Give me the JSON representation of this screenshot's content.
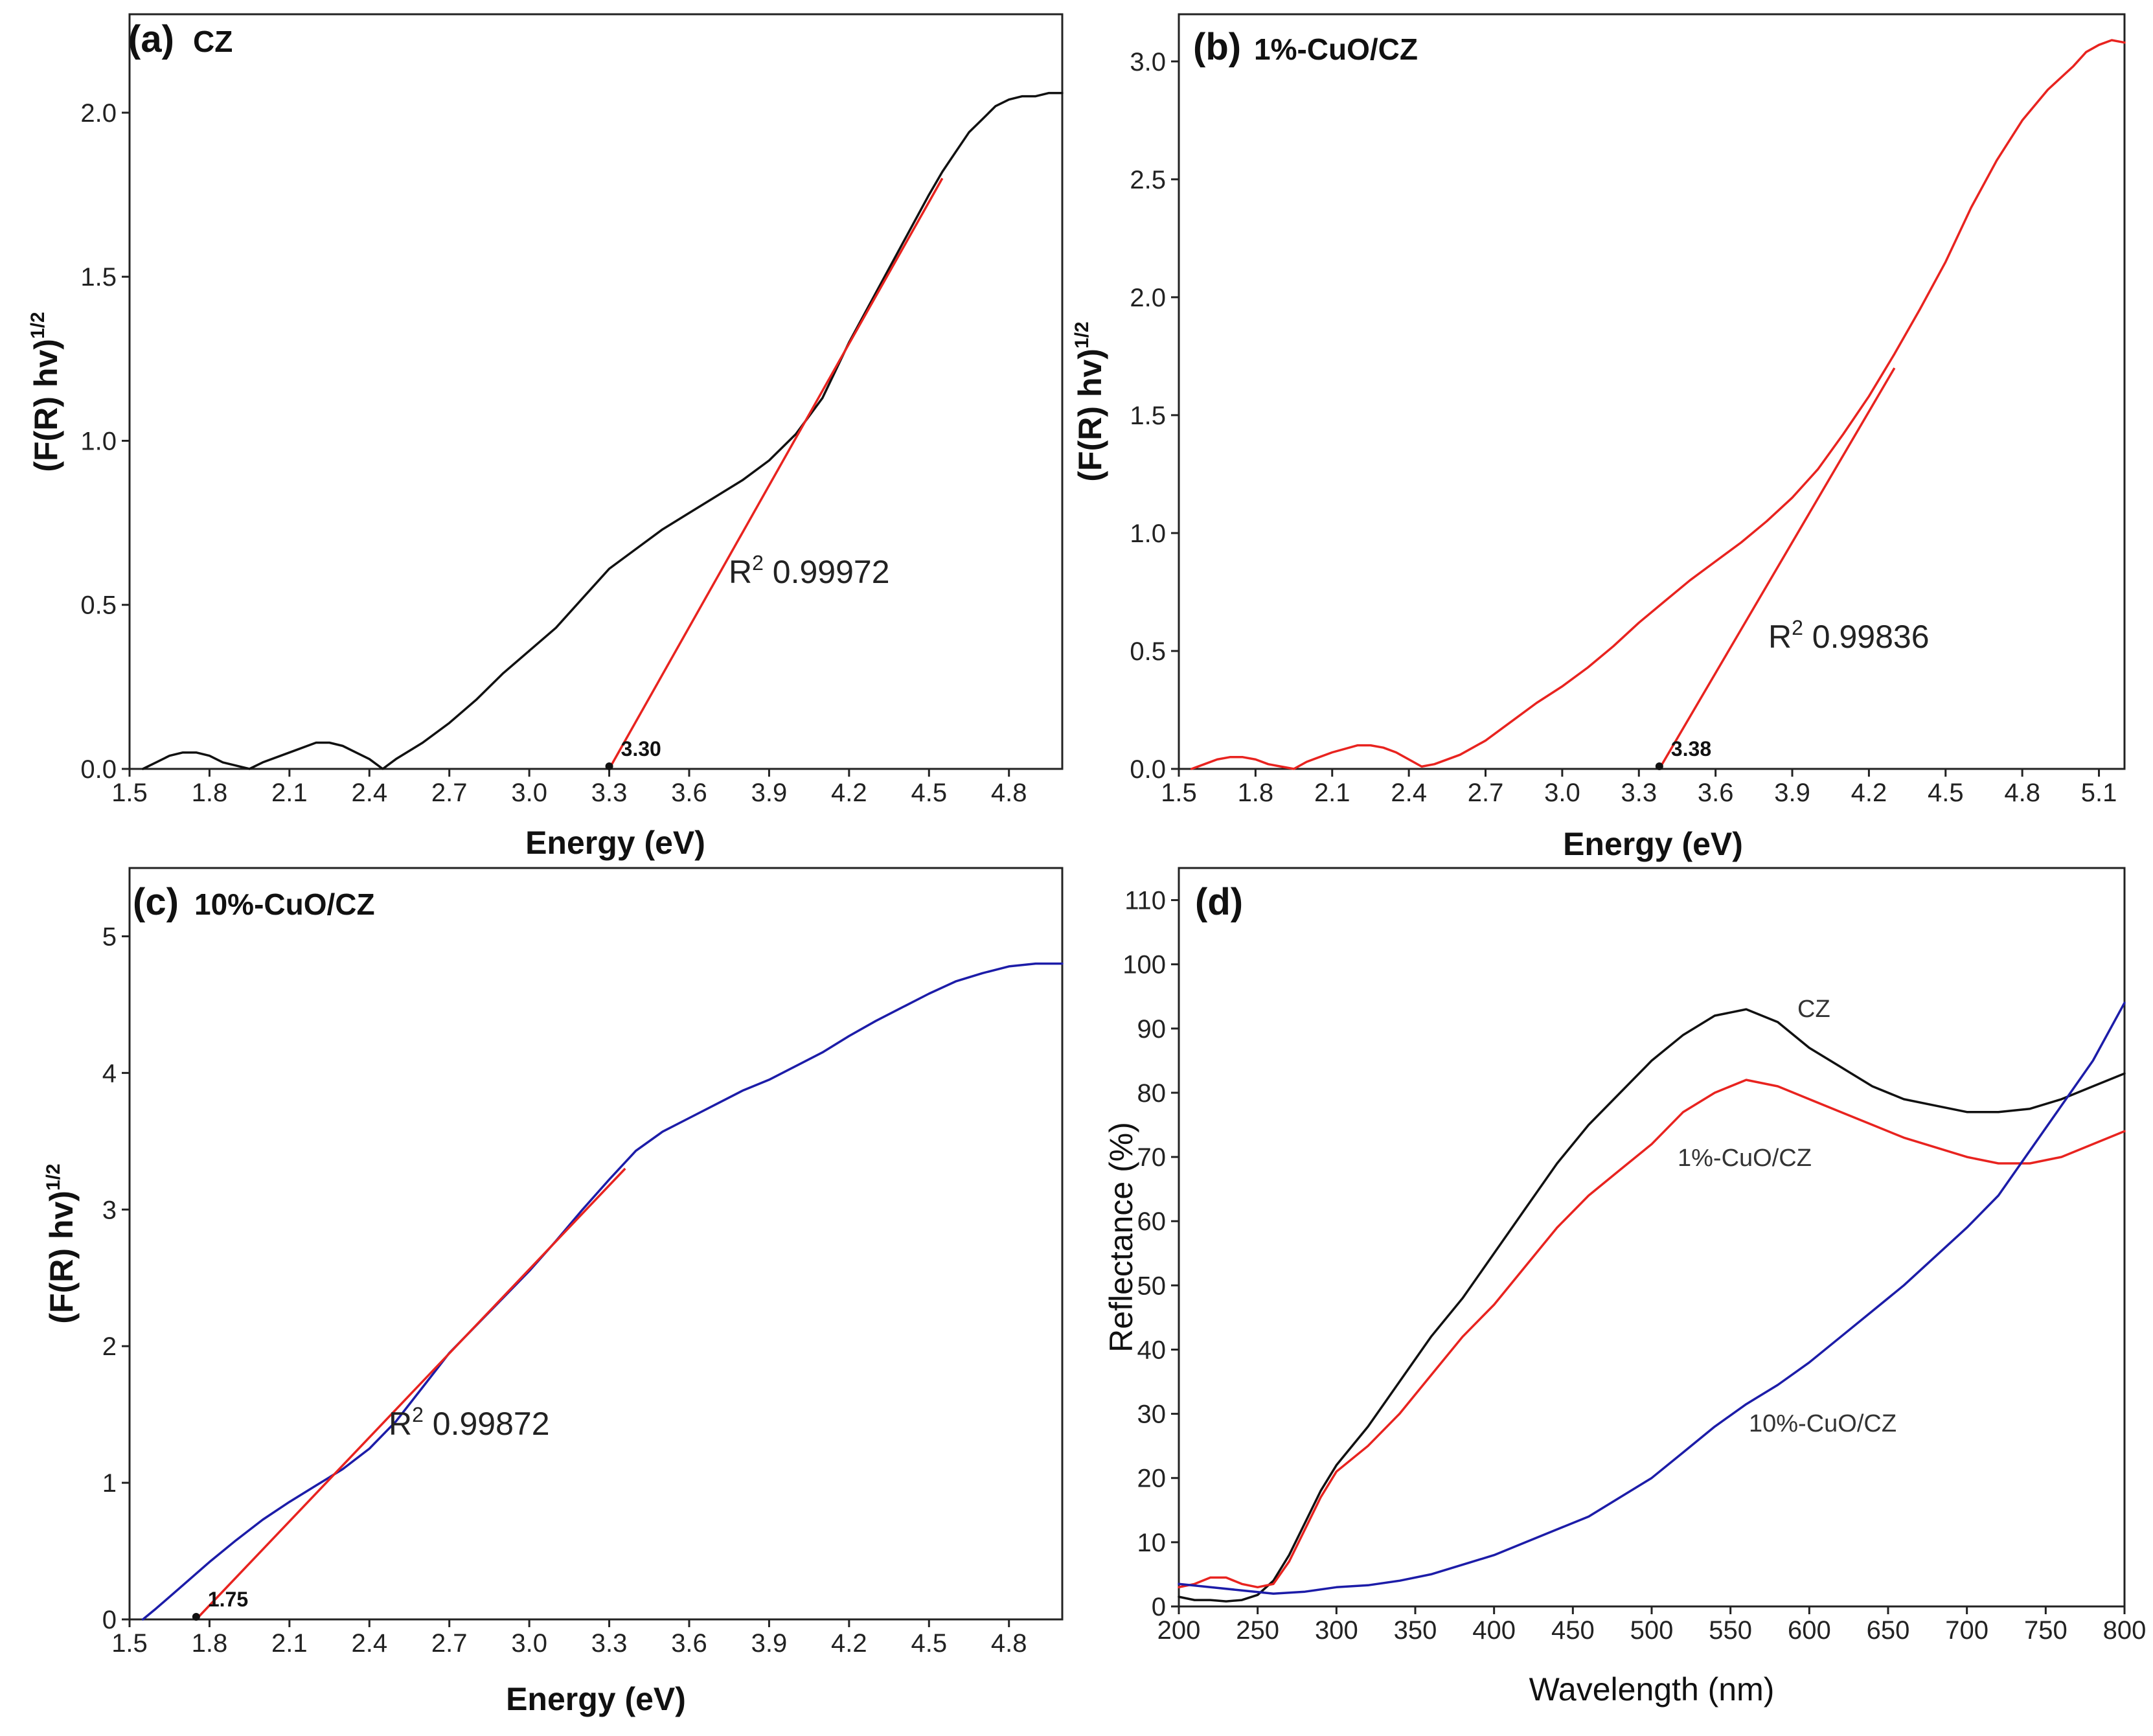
{
  "colors": {
    "black": "#111111",
    "red": "#e8231f",
    "blue": "#1c1ca8"
  },
  "chart_data": [
    {
      "type": "line",
      "panel": "(a)",
      "sample": "CZ",
      "xlabel": "Energy (eV)",
      "ylabel_main": "(F(R) hv)",
      "ylabel_sup": "1/2",
      "xlim": [
        1.5,
        5.0
      ],
      "ylim": [
        0,
        2.3
      ],
      "xticks": [
        "1.5",
        "1.8",
        "2.1",
        "2.4",
        "2.7",
        "3.0",
        "3.3",
        "3.6",
        "3.9",
        "4.2",
        "4.5",
        "4.8"
      ],
      "yticks": [
        "0.0",
        "0.5",
        "1.0",
        "1.5",
        "2.0"
      ],
      "series": [
        {
          "name": "CZ",
          "color": "#111111",
          "x": [
            1.55,
            1.6,
            1.65,
            1.7,
            1.75,
            1.8,
            1.85,
            1.9,
            1.95,
            2.0,
            2.1,
            2.2,
            2.25,
            2.3,
            2.35,
            2.4,
            2.45,
            2.5,
            2.6,
            2.7,
            2.8,
            2.9,
            3.0,
            3.1,
            3.2,
            3.3,
            3.4,
            3.5,
            3.6,
            3.7,
            3.8,
            3.9,
            4.0,
            4.1,
            4.2,
            4.3,
            4.4,
            4.5,
            4.55,
            4.6,
            4.65,
            4.7,
            4.75,
            4.8,
            4.85,
            4.9,
            4.95,
            5.0
          ],
          "y": [
            0.0,
            0.02,
            0.04,
            0.05,
            0.05,
            0.04,
            0.02,
            0.01,
            0.0,
            0.02,
            0.05,
            0.08,
            0.08,
            0.07,
            0.05,
            0.03,
            0.0,
            0.03,
            0.08,
            0.14,
            0.21,
            0.29,
            0.36,
            0.43,
            0.52,
            0.61,
            0.67,
            0.73,
            0.78,
            0.83,
            0.88,
            0.94,
            1.02,
            1.13,
            1.3,
            1.45,
            1.6,
            1.75,
            1.82,
            1.88,
            1.94,
            1.98,
            2.02,
            2.04,
            2.05,
            2.05,
            2.06,
            2.06
          ]
        }
      ],
      "fit": {
        "x": [
          3.3,
          4.55
        ],
        "y": [
          0.0,
          1.8
        ],
        "r2_prefix": "R",
        "r2_sup": "2",
        "r2_value": "0.99972"
      },
      "band_gap_label": "3.30",
      "band_gap_x": 3.3
    },
    {
      "type": "line",
      "panel": "(b)",
      "sample": "1%-CuO/CZ",
      "xlabel": "Energy (eV)",
      "ylabel_main": "(F(R) hv)",
      "ylabel_sup": "1/2",
      "xlim": [
        1.5,
        5.2
      ],
      "ylim": [
        0,
        3.2
      ],
      "xticks": [
        "1.5",
        "1.8",
        "2.1",
        "2.4",
        "2.7",
        "3.0",
        "3.3",
        "3.6",
        "3.9",
        "4.2",
        "4.5",
        "4.8",
        "5.1"
      ],
      "yticks": [
        "0.0",
        "0.5",
        "1.0",
        "1.5",
        "2.0",
        "2.5",
        "3.0"
      ],
      "series": [
        {
          "name": "1%-CuO/CZ",
          "color": "#e8231f",
          "x": [
            1.55,
            1.6,
            1.65,
            1.7,
            1.75,
            1.8,
            1.85,
            1.9,
            1.95,
            2.0,
            2.1,
            2.2,
            2.25,
            2.3,
            2.35,
            2.4,
            2.45,
            2.5,
            2.6,
            2.7,
            2.8,
            2.9,
            3.0,
            3.1,
            3.2,
            3.3,
            3.4,
            3.5,
            3.6,
            3.7,
            3.8,
            3.9,
            4.0,
            4.1,
            4.2,
            4.3,
            4.4,
            4.5,
            4.6,
            4.7,
            4.8,
            4.9,
            5.0,
            5.05,
            5.1,
            5.15,
            5.2
          ],
          "y": [
            0.0,
            0.02,
            0.04,
            0.05,
            0.05,
            0.04,
            0.02,
            0.01,
            0.0,
            0.03,
            0.07,
            0.1,
            0.1,
            0.09,
            0.07,
            0.04,
            0.01,
            0.02,
            0.06,
            0.12,
            0.2,
            0.28,
            0.35,
            0.43,
            0.52,
            0.62,
            0.71,
            0.8,
            0.88,
            0.96,
            1.05,
            1.15,
            1.27,
            1.42,
            1.58,
            1.76,
            1.95,
            2.15,
            2.38,
            2.58,
            2.75,
            2.88,
            2.98,
            3.04,
            3.07,
            3.09,
            3.08
          ]
        }
      ],
      "fit": {
        "x": [
          3.38,
          4.3
        ],
        "y": [
          0.0,
          1.7
        ],
        "r2_prefix": "R",
        "r2_sup": "2",
        "r2_value": "0.99836"
      },
      "band_gap_label": "3.38",
      "band_gap_x": 3.38
    },
    {
      "type": "line",
      "panel": "(c)",
      "sample": "10%-CuO/CZ",
      "xlabel": "Energy (eV)",
      "ylabel_main": "(F(R) hv)",
      "ylabel_sup": "1/2",
      "xlim": [
        1.5,
        5.0
      ],
      "ylim": [
        0,
        5.5
      ],
      "xticks": [
        "1.5",
        "1.8",
        "2.1",
        "2.4",
        "2.7",
        "3.0",
        "3.3",
        "3.6",
        "3.9",
        "4.2",
        "4.5",
        "4.8"
      ],
      "yticks": [
        "0",
        "1",
        "2",
        "3",
        "4",
        "5"
      ],
      "series": [
        {
          "name": "10%-CuO/CZ",
          "color": "#1c1ca8",
          "x": [
            1.55,
            1.6,
            1.7,
            1.8,
            1.9,
            2.0,
            2.1,
            2.2,
            2.3,
            2.4,
            2.5,
            2.6,
            2.7,
            2.8,
            2.9,
            3.0,
            3.1,
            3.2,
            3.3,
            3.4,
            3.5,
            3.6,
            3.7,
            3.8,
            3.9,
            4.0,
            4.1,
            4.2,
            4.3,
            4.4,
            4.5,
            4.6,
            4.7,
            4.8,
            4.9,
            5.0
          ],
          "y": [
            0.0,
            0.08,
            0.25,
            0.42,
            0.58,
            0.73,
            0.86,
            0.98,
            1.1,
            1.25,
            1.45,
            1.7,
            1.95,
            2.15,
            2.35,
            2.55,
            2.77,
            3.0,
            3.22,
            3.43,
            3.57,
            3.67,
            3.77,
            3.87,
            3.95,
            4.05,
            4.15,
            4.27,
            4.38,
            4.48,
            4.58,
            4.67,
            4.73,
            4.78,
            4.8,
            4.8
          ]
        }
      ],
      "fit": {
        "x": [
          1.75,
          3.36
        ],
        "y": [
          0.0,
          3.3
        ],
        "r2_prefix": "R",
        "r2_sup": "2",
        "r2_value": "0.99872"
      },
      "band_gap_label": "1.75",
      "band_gap_x": 1.75
    },
    {
      "type": "line",
      "panel": "(d)",
      "xlabel": "Wavelength (nm)",
      "ylabel": "Reflectance (%)",
      "xlim": [
        200,
        800
      ],
      "ylim": [
        0,
        115
      ],
      "xticks": [
        "200",
        "250",
        "300",
        "350",
        "400",
        "450",
        "500",
        "550",
        "600",
        "650",
        "700",
        "750",
        "800"
      ],
      "yticks": [
        "0",
        "10",
        "20",
        "30",
        "40",
        "50",
        "60",
        "70",
        "80",
        "90",
        "100",
        "110"
      ],
      "series": [
        {
          "name": "CZ",
          "label": "CZ",
          "color": "#111111",
          "x": [
            200,
            210,
            220,
            230,
            240,
            250,
            260,
            270,
            280,
            290,
            300,
            320,
            340,
            360,
            380,
            400,
            420,
            440,
            460,
            480,
            500,
            520,
            540,
            560,
            580,
            600,
            620,
            640,
            660,
            680,
            700,
            720,
            740,
            760,
            780,
            800
          ],
          "y": [
            1.5,
            1.0,
            1.0,
            0.8,
            1.0,
            1.8,
            4,
            8,
            13,
            18,
            22,
            28,
            35,
            42,
            48,
            55,
            62,
            69,
            75,
            80,
            85,
            89,
            92,
            93,
            91,
            87,
            84,
            81,
            79,
            78,
            77,
            77,
            77.5,
            79,
            81,
            83
          ]
        },
        {
          "name": "1%-CuO/CZ",
          "label": "1%-CuO/CZ",
          "color": "#e8231f",
          "x": [
            200,
            210,
            220,
            230,
            240,
            250,
            260,
            270,
            280,
            290,
            300,
            320,
            340,
            360,
            380,
            400,
            420,
            440,
            460,
            480,
            500,
            520,
            540,
            560,
            580,
            600,
            620,
            640,
            660,
            680,
            700,
            720,
            740,
            760,
            780,
            800
          ],
          "y": [
            3,
            3.5,
            4.5,
            4.5,
            3.5,
            3,
            3.5,
            7,
            12,
            17,
            21,
            25,
            30,
            36,
            42,
            47,
            53,
            59,
            64,
            68,
            72,
            77,
            80,
            82,
            81,
            79,
            77,
            75,
            73,
            71.5,
            70,
            69,
            69,
            70,
            72,
            74
          ]
        },
        {
          "name": "10%-CuO/CZ",
          "label": "10%-CuO/CZ",
          "color": "#1c1ca8",
          "x": [
            200,
            220,
            240,
            260,
            280,
            300,
            320,
            340,
            360,
            380,
            400,
            420,
            440,
            460,
            480,
            500,
            520,
            540,
            560,
            580,
            600,
            620,
            640,
            660,
            680,
            700,
            720,
            740,
            760,
            780,
            800
          ],
          "y": [
            3.5,
            3,
            2.5,
            2,
            2.3,
            3,
            3.3,
            4,
            5,
            6.5,
            8,
            10,
            12,
            14,
            17,
            20,
            24,
            28,
            31.5,
            34.5,
            38,
            42,
            46,
            50,
            54.5,
            59,
            64,
            71,
            78,
            85,
            94
          ]
        }
      ]
    }
  ]
}
